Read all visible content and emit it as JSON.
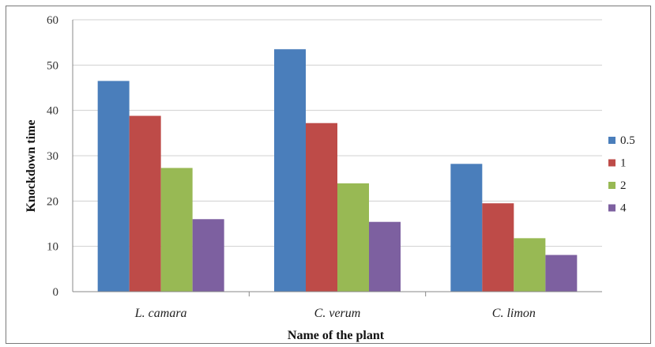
{
  "chart_data": {
    "type": "bar",
    "title": "",
    "xlabel": "Name of the plant",
    "ylabel": "Knockdown time",
    "categories": [
      "L. camara",
      "C.  verum",
      "C. limon"
    ],
    "series": [
      {
        "name": "0.5",
        "color": "#4a7ebb",
        "values": [
          46.5,
          53.5,
          28.2
        ]
      },
      {
        "name": "1",
        "color": "#be4b48",
        "values": [
          38.8,
          37.2,
          19.5
        ]
      },
      {
        "name": "2",
        "color": "#98b954",
        "values": [
          27.3,
          23.9,
          11.8
        ]
      },
      {
        "name": "4",
        "color": "#7d60a0",
        "values": [
          16.0,
          15.4,
          8.1
        ]
      }
    ],
    "ylim": [
      0,
      60
    ],
    "yticks": [
      0,
      10,
      20,
      30,
      40,
      50,
      60
    ],
    "grid": true,
    "legend": "right"
  }
}
